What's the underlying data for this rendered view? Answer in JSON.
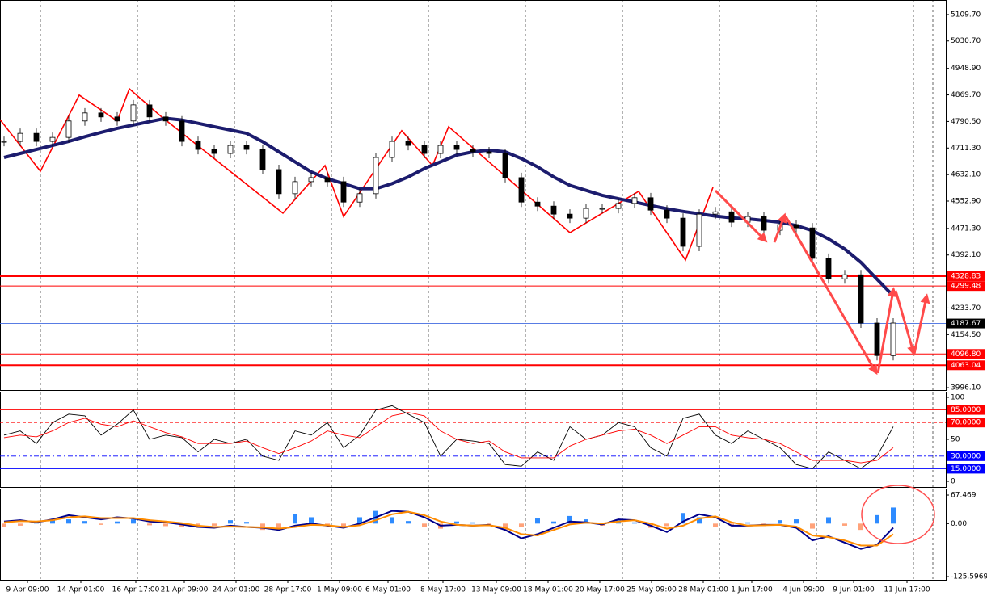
{
  "chart_data": [
    {
      "type": "candlestick",
      "xlim": [
        -0.25,
        58.25
      ],
      "ylim": [
        3989,
        5153
      ],
      "yticks": [
        {
          "value": 5109.7,
          "label": "5109.70"
        },
        {
          "value": 5030.7,
          "label": "5030.70"
        },
        {
          "value": 4948.9,
          "label": "4948.90"
        },
        {
          "value": 4869.7,
          "label": "4869.70"
        },
        {
          "value": 4790.5,
          "label": "4790.50"
        },
        {
          "value": 4711.3,
          "label": "4711.30"
        },
        {
          "value": 4632.1,
          "label": "4632.10"
        },
        {
          "value": 4552.9,
          "label": "4552.90"
        },
        {
          "value": 4471.3,
          "label": "4471.30"
        },
        {
          "value": 4392.1,
          "label": "4392.10"
        },
        {
          "value": 4233.7,
          "label": "4233.70"
        },
        {
          "value": 4154.5,
          "label": "4154.50"
        },
        {
          "value": 3996.1,
          "label": "3996.10"
        }
      ],
      "close": [
        4731,
        4755,
        4731,
        4743,
        4792,
        4816,
        4804,
        4792,
        4840,
        4804,
        4792,
        4731,
        4707,
        4695,
        4719,
        4707,
        4647,
        4575,
        4611,
        4623,
        4611,
        4550,
        4575,
        4683,
        4731,
        4719,
        4695,
        4719,
        4707,
        4700,
        4695,
        4623,
        4550,
        4538,
        4514,
        4502,
        4531,
        4531,
        4546,
        4563,
        4526,
        4502,
        4418,
        4514,
        4521,
        4490,
        4507,
        4466,
        4483,
        4473,
        4382,
        4321,
        4333,
        4189,
        4092,
        4189
      ],
      "ma": [
        4683,
        4695,
        4707,
        4719,
        4731,
        4745,
        4758,
        4770,
        4780,
        4790,
        4800,
        4795,
        4785,
        4775,
        4765,
        4755,
        4730,
        4700,
        4670,
        4640,
        4620,
        4605,
        4590,
        4590,
        4605,
        4625,
        4650,
        4670,
        4690,
        4700,
        4705,
        4700,
        4680,
        4655,
        4625,
        4600,
        4585,
        4570,
        4560,
        4550,
        4540,
        4530,
        4522,
        4515,
        4508,
        4503,
        4500,
        4495,
        4490,
        4480,
        4465,
        4440,
        4410,
        4370,
        4320,
        4270
      ],
      "ma_color": "#1c1c6e",
      "zigzag": {
        "x": [
          -0.25,
          2.25,
          4.65,
          7,
          7.75,
          9.75,
          17.25,
          19.85,
          21,
          24.6,
          26.5,
          27.5,
          35,
          39.25,
          42.15,
          43.85
        ],
        "values": [
          4796,
          4642,
          4869,
          4792,
          4888,
          4804,
          4517,
          4659,
          4507,
          4763,
          4659,
          4775,
          4459,
          4582,
          4377,
          4594
        ],
        "color": "#ff0000"
      },
      "levels": [
        4328.83,
        4299.48,
        {
          "value": 4096.8,
          "label": "4096.80"
        },
        4063.04
      ],
      "level_color": "#ff0000",
      "current": 4187.67,
      "current_color": "#4169e1"
    },
    {
      "type": "line",
      "xlim": [
        -0.25,
        58.25
      ],
      "ylim": [
        -6.7,
        106.7
      ],
      "yticks": [
        100,
        50,
        0
      ],
      "levels": [
        {
          "value": 85,
          "label": "85.0000"
        },
        {
          "value": 70,
          "label": "70.0000"
        },
        {
          "value": 30,
          "label": "30.0000"
        },
        {
          "value": 15,
          "label": "15.0000"
        }
      ],
      "level_colors": [
        "#ff0000",
        "#ff0000",
        "#0000ff",
        "#0000ff"
      ],
      "series": [
        {
          "color": "#000000",
          "values": [
            55,
            60,
            45,
            70,
            80,
            78,
            55,
            68,
            85,
            50,
            55,
            52,
            35,
            50,
            45,
            50,
            30,
            25,
            60,
            55,
            70,
            40,
            55,
            85,
            90,
            80,
            70,
            30,
            50,
            48,
            45,
            20,
            18,
            35,
            25,
            65,
            50,
            55,
            70,
            65,
            40,
            30,
            75,
            80,
            55,
            45,
            60,
            50,
            40,
            20,
            15,
            35,
            25,
            15,
            30,
            65
          ]
        },
        {
          "color": "#ff0000",
          "values": [
            52,
            55,
            53,
            60,
            70,
            75,
            68,
            65,
            72,
            65,
            58,
            53,
            45,
            45,
            45,
            48,
            40,
            33,
            40,
            48,
            60,
            55,
            52,
            65,
            78,
            82,
            78,
            60,
            50,
            45,
            48,
            35,
            28,
            28,
            28,
            42,
            50,
            55,
            60,
            62,
            55,
            45,
            55,
            65,
            65,
            55,
            52,
            50,
            45,
            35,
            25,
            25,
            25,
            22,
            25,
            40
          ]
        }
      ]
    },
    {
      "type": "bar",
      "xlim": [
        -0.25,
        58.25
      ],
      "ylim": [
        -133.2,
        82.8
      ],
      "yticks": [
        67.469,
        {
          "value": 0,
          "label": "0.00"
        },
        -125.5969
      ],
      "xticks": [
        {
          "value": 1.45,
          "label": "9 Apr 09:00"
        },
        {
          "value": 4.75,
          "label": "14 Apr 01:00"
        },
        {
          "value": 8.15,
          "label": "16 Apr 17:00"
        },
        {
          "value": 11.15,
          "label": "21 Apr 09:00"
        },
        {
          "value": 14.35,
          "label": "24 Apr 01:00"
        },
        {
          "value": 17.55,
          "label": "28 Apr 17:00"
        },
        {
          "value": 20.75,
          "label": "1 May 09:00"
        },
        {
          "value": 23.75,
          "label": "6 May 01:00"
        },
        {
          "value": 27.15,
          "label": "8 May 17:00"
        },
        {
          "value": 30.45,
          "label": "13 May 09:00"
        },
        {
          "value": 33.65,
          "label": "18 May 01:00"
        },
        {
          "value": 36.85,
          "label": "20 May 17:00"
        },
        {
          "value": 40.05,
          "label": "25 May 09:00"
        },
        {
          "value": 43.25,
          "label": "28 May 01:00"
        },
        {
          "value": 46.25,
          "label": "1 Jun 17:00"
        },
        {
          "value": 49.45,
          "label": "4 Jun 09:00"
        },
        {
          "value": 52.55,
          "label": "9 Jun 01:00"
        },
        {
          "value": 55.85,
          "label": "11 Jun 17:00"
        }
      ],
      "values": [
        -8,
        -5,
        5,
        8,
        10,
        6,
        -3,
        5,
        10,
        -4,
        -6,
        -8,
        -10,
        -5,
        8,
        4,
        -15,
        -12,
        22,
        15,
        -3,
        -8,
        15,
        30,
        15,
        6,
        -8,
        -12,
        5,
        3,
        -6,
        -15,
        -8,
        12,
        5,
        18,
        10,
        -5,
        8,
        3,
        -10,
        -6,
        25,
        15,
        -8,
        -5,
        3,
        -6,
        8,
        10,
        -12,
        15,
        -5,
        -15,
        20,
        38
      ],
      "colors": [
        "#2e8bff",
        "#ffa27a"
      ],
      "series": [
        {
          "color": "#00008b",
          "values": [
            5,
            8,
            3,
            10,
            20,
            15,
            10,
            15,
            12,
            5,
            3,
            -2,
            -8,
            -10,
            -5,
            -8,
            -10,
            -15,
            -5,
            0,
            -5,
            -10,
            0,
            15,
            30,
            28,
            15,
            -5,
            -3,
            -5,
            -3,
            -15,
            -35,
            -25,
            -10,
            5,
            3,
            -2,
            10,
            8,
            -5,
            -20,
            5,
            22,
            15,
            -5,
            -5,
            -3,
            -3,
            -10,
            -40,
            -30,
            -45,
            -60,
            -50,
            -10
          ]
        },
        {
          "color": "#ff8c00",
          "values": [
            3,
            6,
            5,
            8,
            15,
            17,
            13,
            13,
            13,
            8,
            5,
            1,
            -5,
            -8,
            -7,
            -8,
            -9,
            -12,
            -8,
            -3,
            -4,
            -8,
            -4,
            8,
            22,
            28,
            20,
            5,
            -3,
            -5,
            -4,
            -10,
            -25,
            -28,
            -15,
            -2,
            2,
            0,
            5,
            8,
            0,
            -12,
            -5,
            12,
            17,
            3,
            -5,
            -4,
            -3,
            -7,
            -28,
            -32,
            -40,
            -52,
            -52,
            -25
          ]
        }
      ]
    }
  ]
}
